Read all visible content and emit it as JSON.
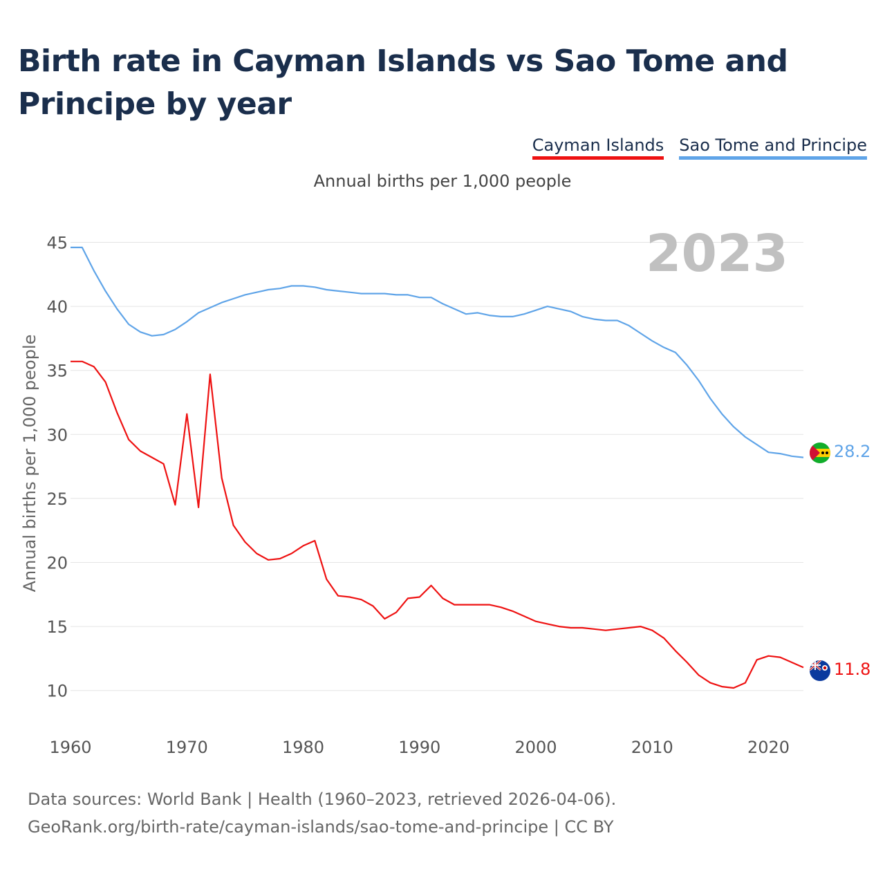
{
  "chart_data": {
    "type": "line",
    "title": "Birth rate in Cayman Islands vs Sao Tome and Principe by year",
    "subtitle": "Annual births per 1,000 people",
    "ylabel": "Annual births per 1,000 people",
    "xlabel": "",
    "year_label": "2023",
    "xlim": [
      1960,
      2023
    ],
    "ylim": [
      7.5,
      46
    ],
    "x_ticks": [
      1960,
      1970,
      1980,
      1990,
      2000,
      2010,
      2020
    ],
    "y_ticks": [
      10,
      15,
      20,
      25,
      30,
      35,
      40,
      45
    ],
    "grid": true,
    "legend_position": "top-right",
    "series": [
      {
        "name": "Cayman Islands",
        "color": "#ee1111",
        "end_label": "11.8",
        "flag_icon": "cayman-islands-flag-icon",
        "values": [
          35.7,
          35.7,
          35.3,
          34.1,
          31.7,
          29.6,
          28.7,
          28.2,
          27.7,
          24.5,
          31.6,
          24.3,
          34.7,
          26.6,
          22.9,
          21.6,
          20.7,
          20.2,
          20.3,
          20.7,
          21.3,
          21.7,
          18.7,
          17.4,
          17.3,
          17.1,
          16.6,
          15.6,
          16.1,
          17.2,
          17.3,
          18.2,
          17.2,
          16.7,
          16.7,
          16.7,
          16.7,
          16.5,
          16.2,
          15.8,
          15.4,
          15.2,
          15.0,
          14.9,
          14.9,
          14.8,
          14.7,
          14.8,
          14.9,
          15.0,
          14.7,
          14.1,
          13.1,
          12.2,
          11.2,
          10.6,
          10.3,
          10.2,
          10.6,
          12.4,
          12.7,
          12.6,
          12.2,
          11.8
        ]
      },
      {
        "name": "Sao Tome and Principe",
        "color": "#5fa4e8",
        "end_label": "28.2",
        "flag_icon": "sao-tome-and-principe-flag-icon",
        "values": [
          44.6,
          44.6,
          42.8,
          41.2,
          39.8,
          38.6,
          38.0,
          37.7,
          37.8,
          38.2,
          38.8,
          39.5,
          39.9,
          40.3,
          40.6,
          40.9,
          41.1,
          41.3,
          41.4,
          41.6,
          41.6,
          41.5,
          41.3,
          41.2,
          41.1,
          41.0,
          41.0,
          41.0,
          40.9,
          40.9,
          40.7,
          40.7,
          40.2,
          39.8,
          39.4,
          39.5,
          39.3,
          39.2,
          39.2,
          39.4,
          39.7,
          40.0,
          39.8,
          39.6,
          39.2,
          39.0,
          38.9,
          38.9,
          38.5,
          37.9,
          37.3,
          36.8,
          36.4,
          35.4,
          34.2,
          32.8,
          31.6,
          30.6,
          29.8,
          29.2,
          28.6,
          28.5,
          28.3,
          28.2
        ]
      }
    ]
  },
  "footer": {
    "line1": "Data sources: World Bank | Health (1960–2023, retrieved 2026-04-06).",
    "line2": "GeoRank.org/birth-rate/cayman-islands/sao-tome-and-principe | CC BY"
  }
}
